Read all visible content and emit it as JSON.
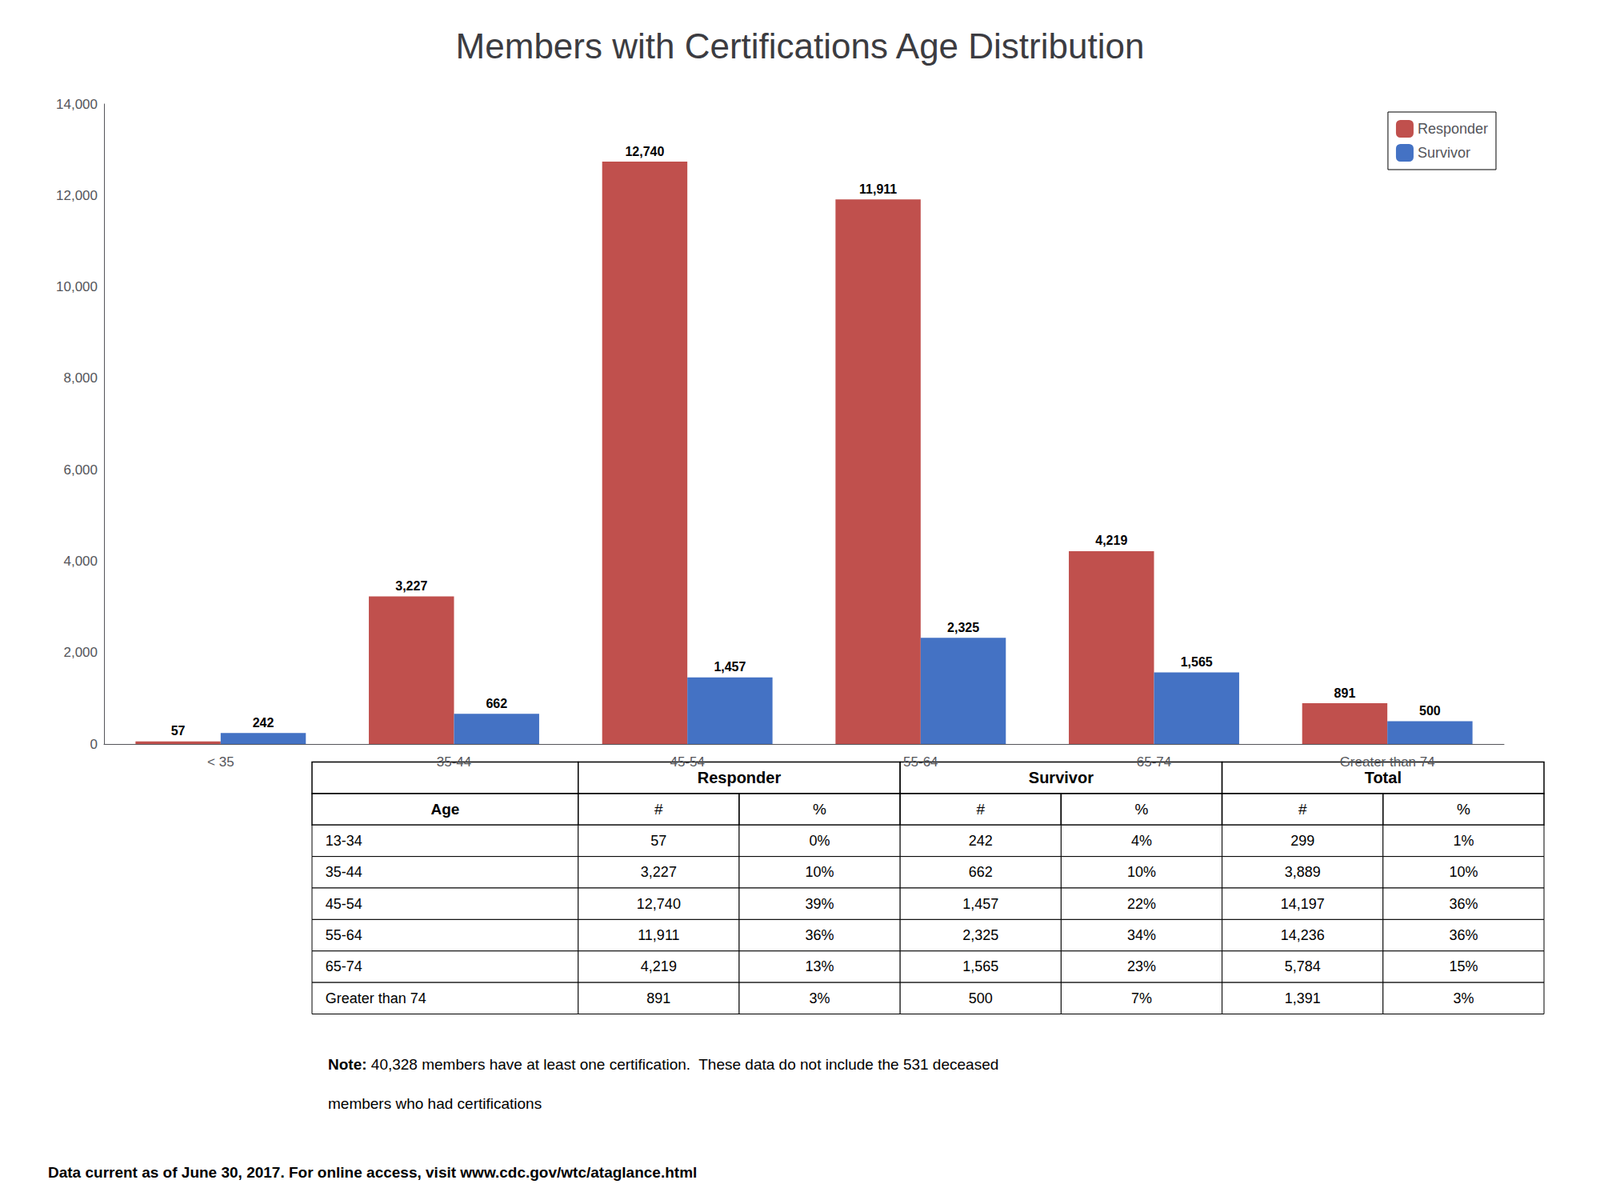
{
  "chart_data": {
    "type": "bar",
    "title": "Members with Certifications Age Distribution",
    "categories": [
      "< 35",
      "35-44",
      "45-54",
      "55-64",
      "65-74",
      "Greater than 74"
    ],
    "series": [
      {
        "name": "Responder",
        "color": "#C0504D",
        "values": [
          57,
          3227,
          12740,
          11911,
          4219,
          891
        ],
        "value_labels": [
          "57",
          "3,227",
          "12,740",
          "11,911",
          "4,219",
          "891"
        ]
      },
      {
        "name": "Survivor",
        "color": "#4472C4",
        "values": [
          242,
          662,
          1457,
          2325,
          1565,
          500
        ],
        "value_labels": [
          "242",
          "662",
          "1,457",
          "2,325",
          "1,565",
          "500"
        ]
      }
    ],
    "ylim": [
      0,
      14000
    ],
    "yticks": [
      0,
      {
        "value": 2000,
        "label": "2,000"
      },
      {
        "value": 4000,
        "label": "4,000"
      },
      {
        "value": 6000,
        "label": "6,000"
      },
      {
        "value": 8000,
        "label": "8,000"
      },
      {
        "value": 10000,
        "label": "10,000"
      },
      {
        "value": 12000,
        "label": "12,000"
      },
      {
        "value": 14000,
        "label": "14,000"
      }
    ],
    "grid": false,
    "legend": "upper right",
    "data_labels": true,
    "table": {
      "group_headers": [
        "Responder",
        "Survivor",
        "Total"
      ],
      "headers": [
        "Age",
        "#",
        "%",
        "#",
        "%",
        "#",
        "%"
      ],
      "rows": [
        [
          "13-34",
          "57",
          "0%",
          "242",
          "4%",
          "299",
          "1%"
        ],
        [
          "35-44",
          "3,227",
          "10%",
          "662",
          "10%",
          "3,889",
          "10%"
        ],
        [
          "45-54",
          "12,740",
          "39%",
          "1,457",
          "22%",
          "14,197",
          "36%"
        ],
        [
          "55-64",
          "11,911",
          "36%",
          "2,325",
          "34%",
          "14,236",
          "36%"
        ],
        [
          "65-74",
          "4,219",
          "13%",
          "1,565",
          "23%",
          "5,784",
          "15%"
        ],
        [
          "Greater than 74",
          "891",
          "3%",
          "500",
          "7%",
          "1,391",
          "3%"
        ]
      ]
    },
    "note_label": "Note:",
    "note_lines": [
      " 40,328 members have at least one certification.  These data do not include the 531 deceased",
      "members who had certifications"
    ],
    "footer": "Data current as of June 30, 2017. For online access, visit www.cdc.gov/wtc/ataglance.html"
  }
}
